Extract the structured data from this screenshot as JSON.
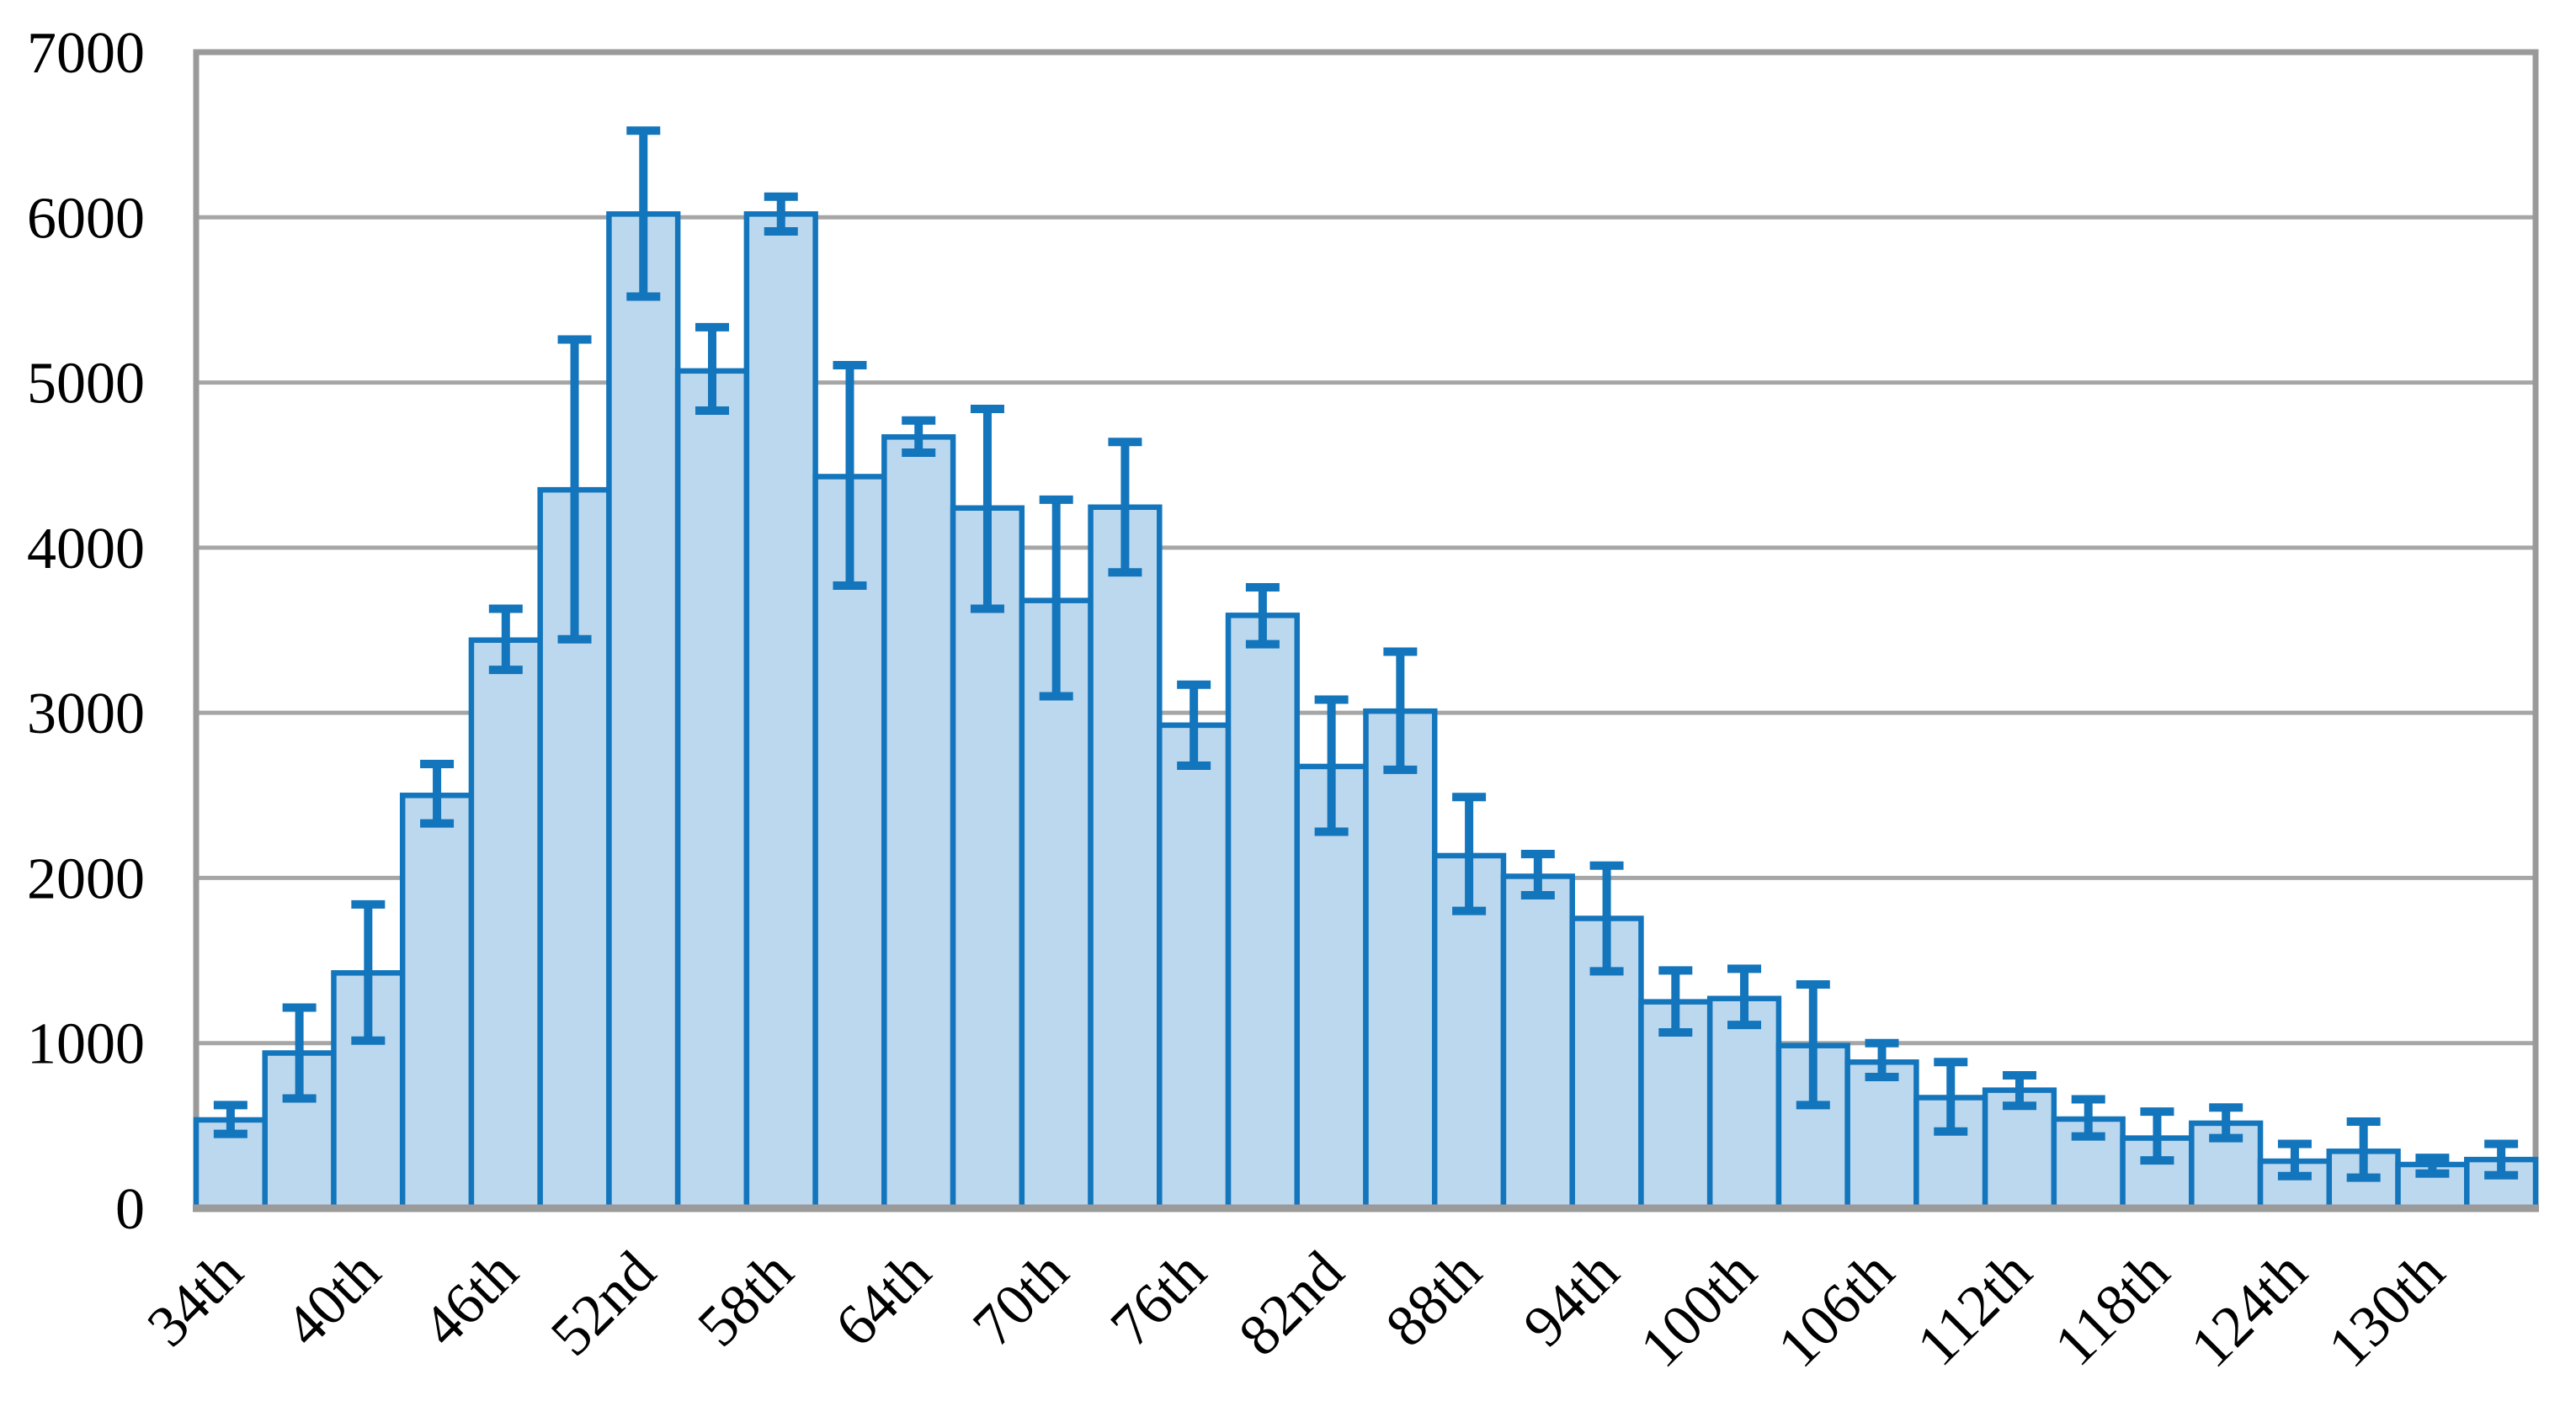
{
  "figure": {
    "background": "#ffffff",
    "title": "",
    "legend": "none"
  },
  "chart_data": {
    "type": "bar",
    "title": "",
    "xlabel": "",
    "ylabel": "",
    "ylim": [
      0,
      7000
    ],
    "ytick_step": 1000,
    "ytick_labels": [
      "0",
      "1000",
      "2000",
      "3000",
      "4000",
      "5000",
      "6000",
      "7000"
    ],
    "grid": "horizontal-gridlines-on",
    "legend_position": "none",
    "colors": {
      "bar_fill": "#BCD8EE",
      "bar_border": "#1375BC",
      "error_bar": "#1375BC",
      "gridline": "#A6A6A6",
      "plot_border": "#9A9A9A",
      "text": "#000000"
    },
    "x_tick_labels_visible": [
      "34th",
      "40th",
      "46th",
      "52nd",
      "58th",
      "64th",
      "70th",
      "76th",
      "82nd",
      "88th",
      "94th",
      "100th",
      "106th",
      "112th",
      "118th",
      "124th",
      "130th"
    ],
    "bars": [
      {
        "label": "34th",
        "value": 535,
        "err_low": 450,
        "err_high": 625
      },
      {
        "label": "",
        "value": 940,
        "err_low": 665,
        "err_high": 1215
      },
      {
        "label": "40th",
        "value": 1425,
        "err_low": 1015,
        "err_high": 1840
      },
      {
        "label": "",
        "value": 2500,
        "err_low": 2330,
        "err_high": 2690
      },
      {
        "label": "46th",
        "value": 3440,
        "err_low": 3260,
        "err_high": 3630
      },
      {
        "label": "",
        "value": 4350,
        "err_low": 3445,
        "err_high": 5260
      },
      {
        "label": "52nd",
        "value": 6020,
        "err_low": 5520,
        "err_high": 6525
      },
      {
        "label": "",
        "value": 5070,
        "err_low": 4830,
        "err_high": 5335
      },
      {
        "label": "58th",
        "value": 6020,
        "err_low": 5915,
        "err_high": 6125
      },
      {
        "label": "",
        "value": 4430,
        "err_low": 3770,
        "err_high": 5105
      },
      {
        "label": "64th",
        "value": 4670,
        "err_low": 4575,
        "err_high": 4770
      },
      {
        "label": "",
        "value": 4240,
        "err_low": 3630,
        "err_high": 4840
      },
      {
        "label": "70th",
        "value": 3680,
        "err_low": 3100,
        "err_high": 4290
      },
      {
        "label": "",
        "value": 4245,
        "err_low": 3850,
        "err_high": 4640
      },
      {
        "label": "76th",
        "value": 2925,
        "err_low": 2680,
        "err_high": 3170
      },
      {
        "label": "",
        "value": 3590,
        "err_low": 3415,
        "err_high": 3760
      },
      {
        "label": "82nd",
        "value": 2675,
        "err_low": 2280,
        "err_high": 3080
      },
      {
        "label": "",
        "value": 3010,
        "err_low": 2655,
        "err_high": 3370
      },
      {
        "label": "88th",
        "value": 2135,
        "err_low": 1800,
        "err_high": 2490
      },
      {
        "label": "",
        "value": 2010,
        "err_low": 1895,
        "err_high": 2145
      },
      {
        "label": "94th",
        "value": 1755,
        "err_low": 1435,
        "err_high": 2075
      },
      {
        "label": "",
        "value": 1250,
        "err_low": 1065,
        "err_high": 1440
      },
      {
        "label": "100th",
        "value": 1270,
        "err_low": 1110,
        "err_high": 1450
      },
      {
        "label": "",
        "value": 985,
        "err_low": 625,
        "err_high": 1355
      },
      {
        "label": "106th",
        "value": 885,
        "err_low": 795,
        "err_high": 1000
      },
      {
        "label": "",
        "value": 670,
        "err_low": 465,
        "err_high": 885
      },
      {
        "label": "112th",
        "value": 715,
        "err_low": 620,
        "err_high": 805
      },
      {
        "label": "",
        "value": 540,
        "err_low": 435,
        "err_high": 660
      },
      {
        "label": "118th",
        "value": 425,
        "err_low": 290,
        "err_high": 585
      },
      {
        "label": "",
        "value": 515,
        "err_low": 425,
        "err_high": 610
      },
      {
        "label": "124th",
        "value": 285,
        "err_low": 195,
        "err_high": 390
      },
      {
        "label": "",
        "value": 345,
        "err_low": 185,
        "err_high": 525
      },
      {
        "label": "130th",
        "value": 265,
        "err_low": 210,
        "err_high": 305
      },
      {
        "label": "",
        "value": 295,
        "err_low": 200,
        "err_high": 390
      }
    ]
  }
}
